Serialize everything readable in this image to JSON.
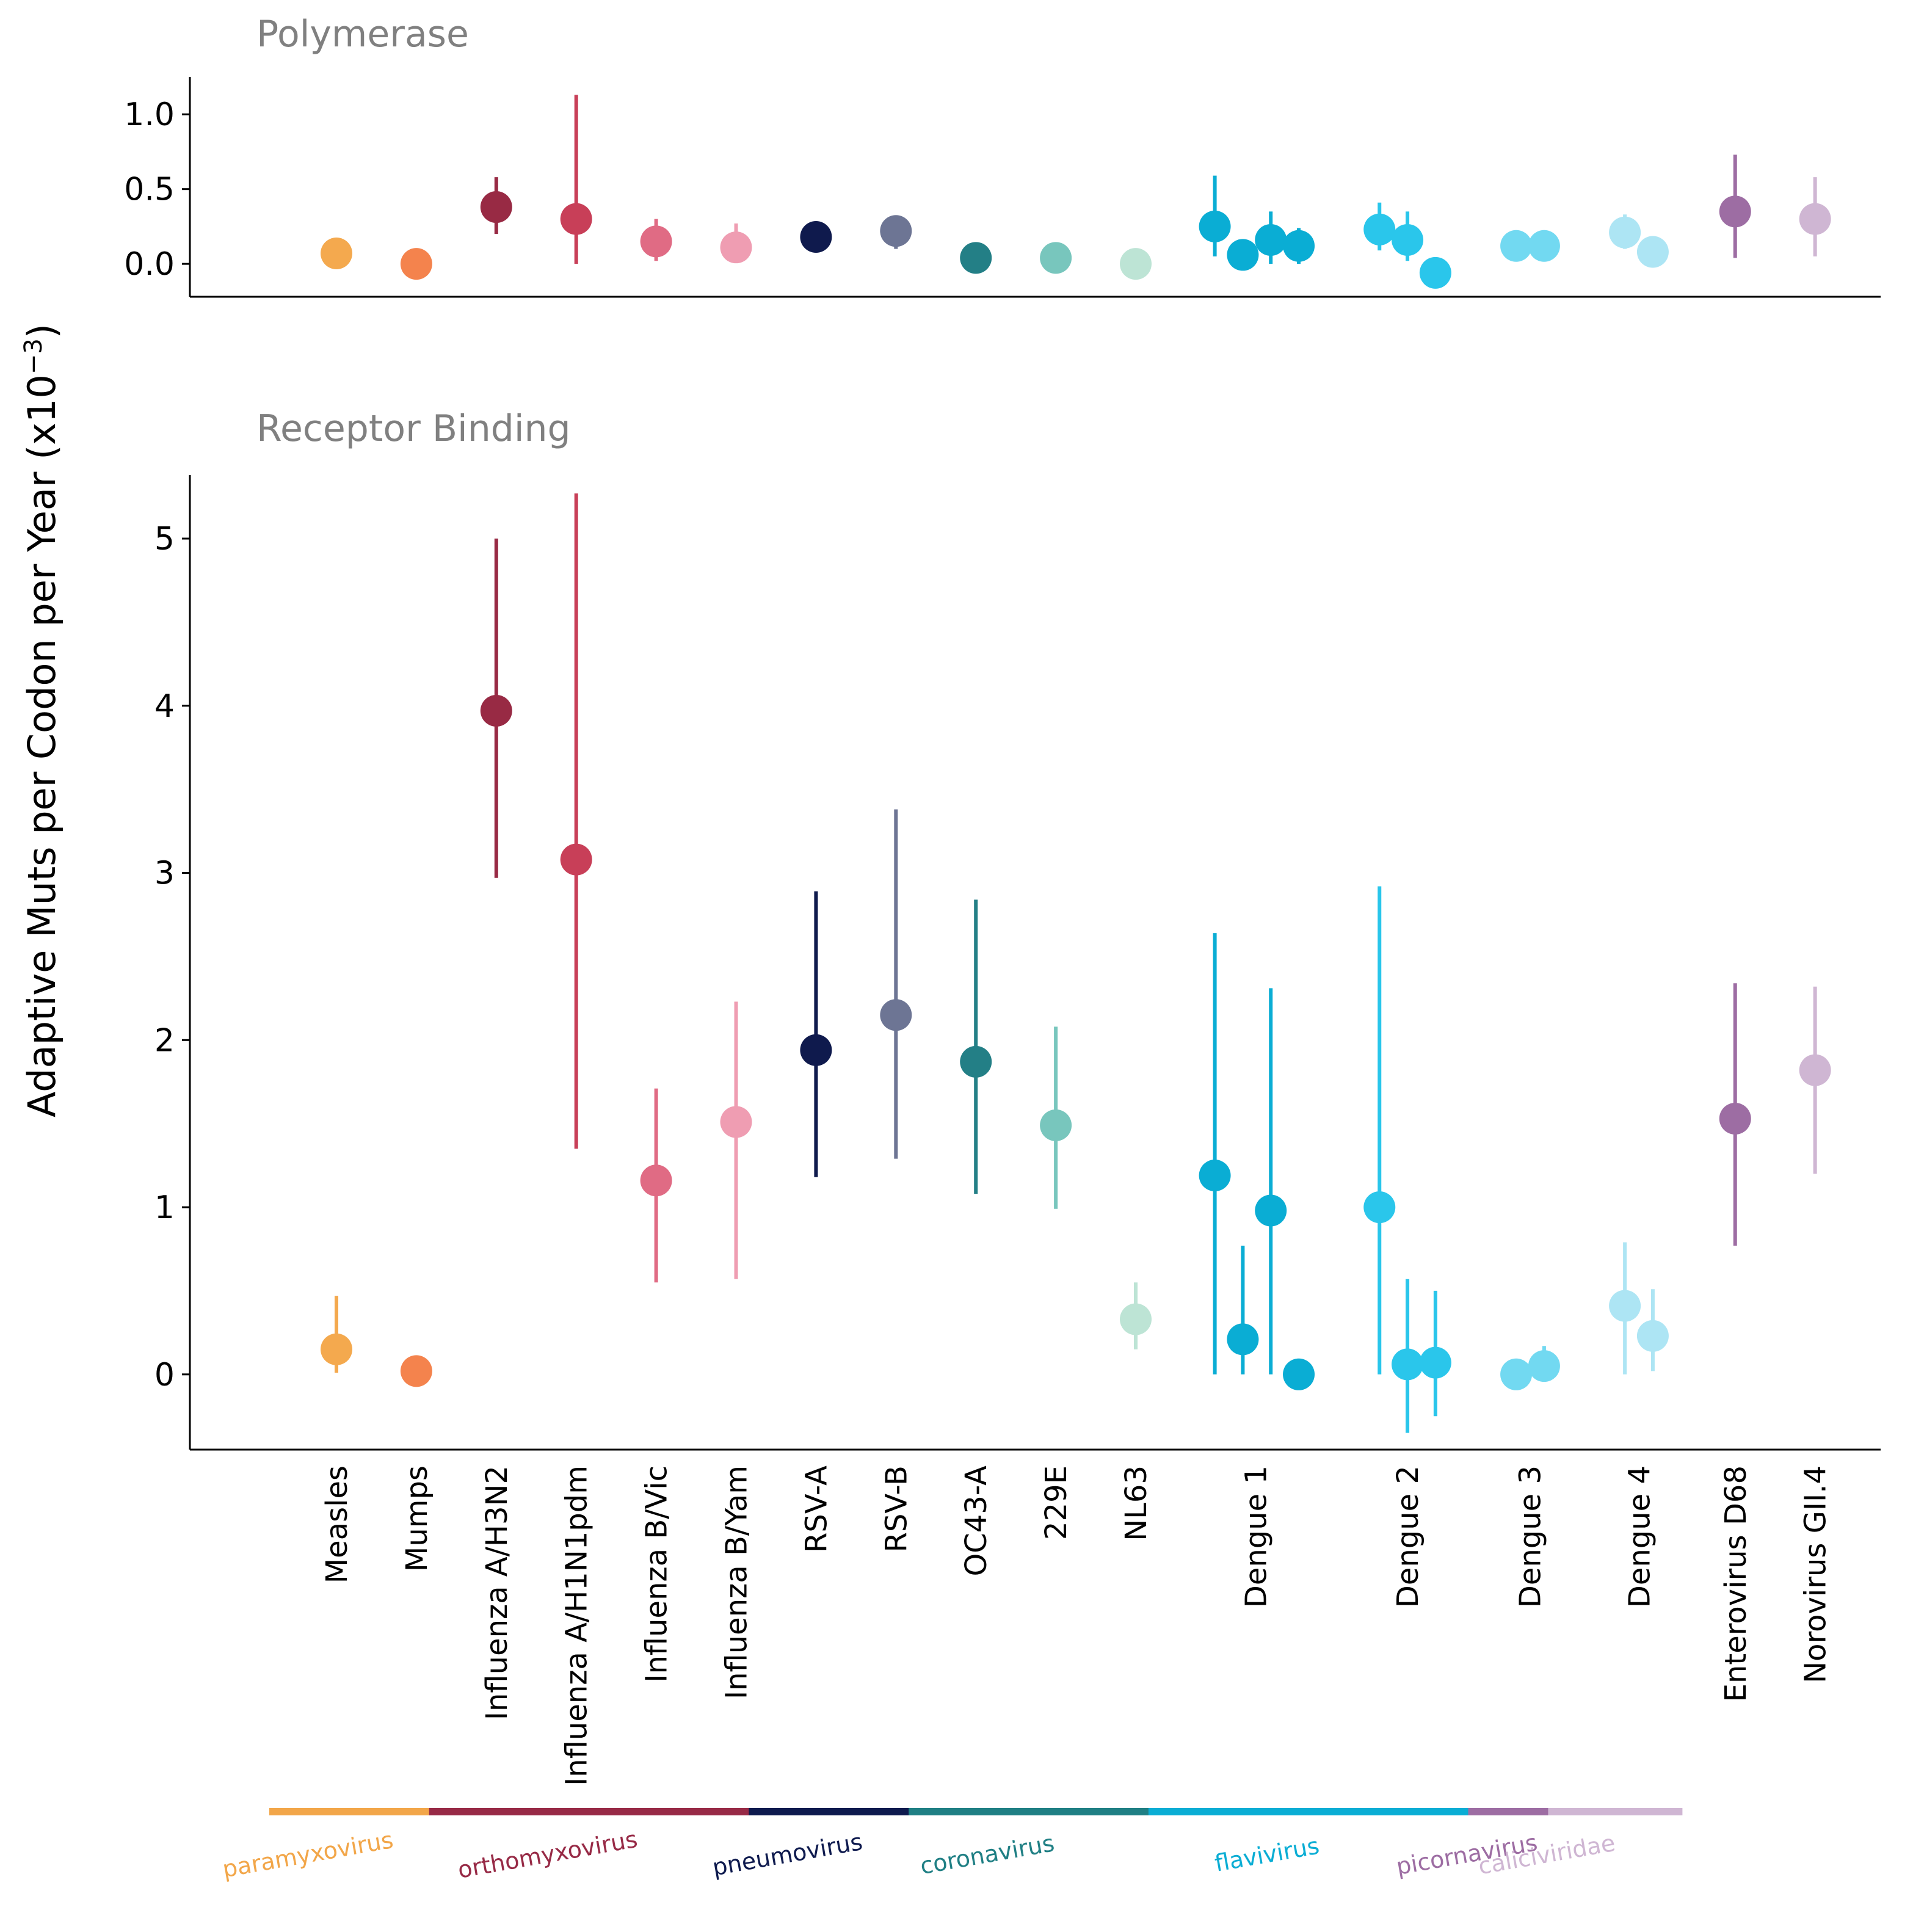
{
  "chart_data": {
    "type": "scatter",
    "ylabel": "Adaptive Muts per Codon per Year (x10",
    "ylabel_exponent": "−3",
    "ylabel_close": ")",
    "categories": [
      "Measles",
      "Mumps",
      "Influenza A/H3N2",
      "Influenza A/H1N1pdm",
      "Influenza B/Vic",
      "Influenza B/Yam",
      "RSV-A",
      "RSV-B",
      "OC43-A",
      "229E",
      "NL63",
      "Dengue 1",
      "Dengue 2",
      "Dengue 3",
      "Dengue 4",
      "Enterovirus D68",
      "Norovirus GII.4"
    ],
    "families": [
      {
        "name": "paramyxovirus",
        "color": "#f2a649",
        "from": 0,
        "to": 1
      },
      {
        "name": "orthomyxovirus",
        "color": "#972a46",
        "from": 2,
        "to": 5
      },
      {
        "name": "pneumovirus",
        "color": "#0e1a4e",
        "from": 6,
        "to": 7
      },
      {
        "name": "coronavirus",
        "color": "#1f7f84",
        "from": 8,
        "to": 10
      },
      {
        "name": "flavivirus",
        "color": "#0aadd4",
        "from": 11,
        "to": 14
      },
      {
        "name": "picornavirus",
        "color": "#9d6da3",
        "from": 15,
        "to": 15
      },
      {
        "name": "caliciviridae",
        "color": "#cfb6d3",
        "from": 16,
        "to": 16
      }
    ],
    "panels": [
      {
        "title": "Polymerase",
        "ylim": [
          -0.22,
          1.25
        ],
        "yticks": [
          0.0,
          0.5,
          1.0
        ],
        "ytick_labels": [
          "0.0",
          "0.5",
          "1.0"
        ],
        "points": [
          {
            "pos": 0,
            "value": 0.07,
            "low": 0.07,
            "high": 0.07,
            "color": "#f4a94e"
          },
          {
            "pos": 1,
            "value": 0.0,
            "low": 0.0,
            "high": 0.0,
            "color": "#f4834d"
          },
          {
            "pos": 2,
            "value": 0.38,
            "low": 0.2,
            "high": 0.58,
            "color": "#982a44"
          },
          {
            "pos": 3,
            "value": 0.3,
            "low": 0.0,
            "high": 1.13,
            "color": "#c83f58"
          },
          {
            "pos": 4,
            "value": 0.15,
            "low": 0.02,
            "high": 0.3,
            "color": "#e06b84"
          },
          {
            "pos": 5,
            "value": 0.11,
            "low": 0.05,
            "high": 0.27,
            "color": "#ef9db2"
          },
          {
            "pos": 6,
            "value": 0.18,
            "low": 0.18,
            "high": 0.18,
            "color": "#0f1a4d"
          },
          {
            "pos": 7,
            "value": 0.22,
            "low": 0.1,
            "high": 0.25,
            "color": "#6d7594"
          },
          {
            "pos": 8,
            "value": 0.04,
            "low": 0.0,
            "high": 0.14,
            "color": "#237f86"
          },
          {
            "pos": 9,
            "value": 0.04,
            "low": 0.04,
            "high": 0.04,
            "color": "#78c6bd"
          },
          {
            "pos": 10,
            "value": 0.0,
            "low": 0.0,
            "high": 0.0,
            "color": "#bde4d5"
          },
          {
            "pos": 10.99,
            "value": 0.25,
            "low": 0.05,
            "high": 0.59,
            "color": "#0aadd4"
          },
          {
            "pos": 11.34,
            "value": 0.06,
            "low": 0.06,
            "high": 0.06,
            "color": "#0aadd4"
          },
          {
            "pos": 11.69,
            "value": 0.16,
            "low": 0.0,
            "high": 0.35,
            "color": "#0aadd4"
          },
          {
            "pos": 12.04,
            "value": 0.12,
            "low": 0.0,
            "high": 0.24,
            "color": "#0aadd4"
          },
          {
            "pos": 13.05,
            "value": 0.23,
            "low": 0.09,
            "high": 0.41,
            "color": "#2ac6eb"
          },
          {
            "pos": 13.4,
            "value": 0.16,
            "low": 0.02,
            "high": 0.35,
            "color": "#2ac6eb"
          },
          {
            "pos": 13.75,
            "value": -0.06,
            "low": -0.06,
            "high": -0.06,
            "color": "#2ac6eb"
          },
          {
            "pos": 14.76,
            "value": 0.12,
            "low": 0.07,
            "high": 0.2,
            "color": "#72d9f1"
          },
          {
            "pos": 15.11,
            "value": 0.12,
            "low": 0.05,
            "high": 0.22,
            "color": "#72d9f1"
          },
          {
            "pos": 16.12,
            "value": 0.21,
            "low": 0.1,
            "high": 0.33,
            "color": "#ade5f4"
          },
          {
            "pos": 16.47,
            "value": 0.08,
            "low": 0.08,
            "high": 0.08,
            "color": "#ade5f4"
          },
          {
            "pos": 17.5,
            "value": 0.35,
            "low": 0.04,
            "high": 0.73,
            "color": "#9d6da3"
          },
          {
            "pos": 18.5,
            "value": 0.3,
            "low": 0.05,
            "high": 0.58,
            "color": "#cfb6d3"
          }
        ]
      },
      {
        "title": "Receptor Binding",
        "ylim": [
          -0.45,
          5.38
        ],
        "yticks": [
          0,
          1,
          2,
          3,
          4,
          5
        ],
        "ytick_labels": [
          "0",
          "1",
          "2",
          "3",
          "4",
          "5"
        ],
        "points": [
          {
            "pos": 0,
            "value": 0.15,
            "low": 0.01,
            "high": 0.47,
            "color": "#f4a94e"
          },
          {
            "pos": 1,
            "value": 0.02,
            "low": 0.02,
            "high": 0.02,
            "color": "#f4834d"
          },
          {
            "pos": 2,
            "value": 3.97,
            "low": 2.97,
            "high": 5.0,
            "color": "#982a44"
          },
          {
            "pos": 3,
            "value": 3.08,
            "low": 1.35,
            "high": 5.27,
            "color": "#c83f58"
          },
          {
            "pos": 4,
            "value": 1.16,
            "low": 0.55,
            "high": 1.71,
            "color": "#e06b84"
          },
          {
            "pos": 5,
            "value": 1.51,
            "low": 0.57,
            "high": 2.23,
            "color": "#ef9db2"
          },
          {
            "pos": 6,
            "value": 1.94,
            "low": 1.18,
            "high": 2.89,
            "color": "#0f1a4d"
          },
          {
            "pos": 7,
            "value": 2.15,
            "low": 1.29,
            "high": 3.38,
            "color": "#6d7594"
          },
          {
            "pos": 8,
            "value": 1.87,
            "low": 1.08,
            "high": 2.84,
            "color": "#237f86"
          },
          {
            "pos": 9,
            "value": 1.49,
            "low": 0.99,
            "high": 2.08,
            "color": "#78c6bd"
          },
          {
            "pos": 10,
            "value": 0.33,
            "low": 0.15,
            "high": 0.55,
            "color": "#bde4d5"
          },
          {
            "pos": 10.99,
            "value": 1.19,
            "low": 0.0,
            "high": 2.64,
            "color": "#0aadd4"
          },
          {
            "pos": 11.34,
            "value": 0.21,
            "low": 0.0,
            "high": 0.77,
            "color": "#0aadd4"
          },
          {
            "pos": 11.69,
            "value": 0.98,
            "low": 0.0,
            "high": 2.31,
            "color": "#0aadd4"
          },
          {
            "pos": 12.04,
            "value": 0.0,
            "low": 0.0,
            "high": 0.0,
            "color": "#0aadd4"
          },
          {
            "pos": 13.05,
            "value": 1.0,
            "low": 0.0,
            "high": 2.92,
            "color": "#2ac6eb"
          },
          {
            "pos": 13.4,
            "value": 0.06,
            "low": -0.35,
            "high": 0.57,
            "color": "#2ac6eb"
          },
          {
            "pos": 13.75,
            "value": 0.07,
            "low": -0.25,
            "high": 0.5,
            "color": "#2ac6eb"
          },
          {
            "pos": 14.76,
            "value": 0.0,
            "low": 0.0,
            "high": 0.0,
            "color": "#72d9f1"
          },
          {
            "pos": 15.11,
            "value": 0.05,
            "low": 0.0,
            "high": 0.17,
            "color": "#72d9f1"
          },
          {
            "pos": 16.12,
            "value": 0.41,
            "low": 0.0,
            "high": 0.79,
            "color": "#ade5f4"
          },
          {
            "pos": 16.47,
            "value": 0.23,
            "low": 0.02,
            "high": 0.51,
            "color": "#ade5f4"
          },
          {
            "pos": 17.5,
            "value": 1.53,
            "low": 0.77,
            "high": 2.34,
            "color": "#9d6da3"
          },
          {
            "pos": 18.5,
            "value": 1.82,
            "low": 1.2,
            "high": 2.32,
            "color": "#cfb6d3"
          }
        ]
      }
    ],
    "category_positions": [
      0,
      1,
      2,
      3,
      4,
      5,
      6,
      7,
      8,
      9,
      10,
      11.5,
      13.4,
      14.93,
      16.3,
      17.5,
      18.5
    ]
  }
}
